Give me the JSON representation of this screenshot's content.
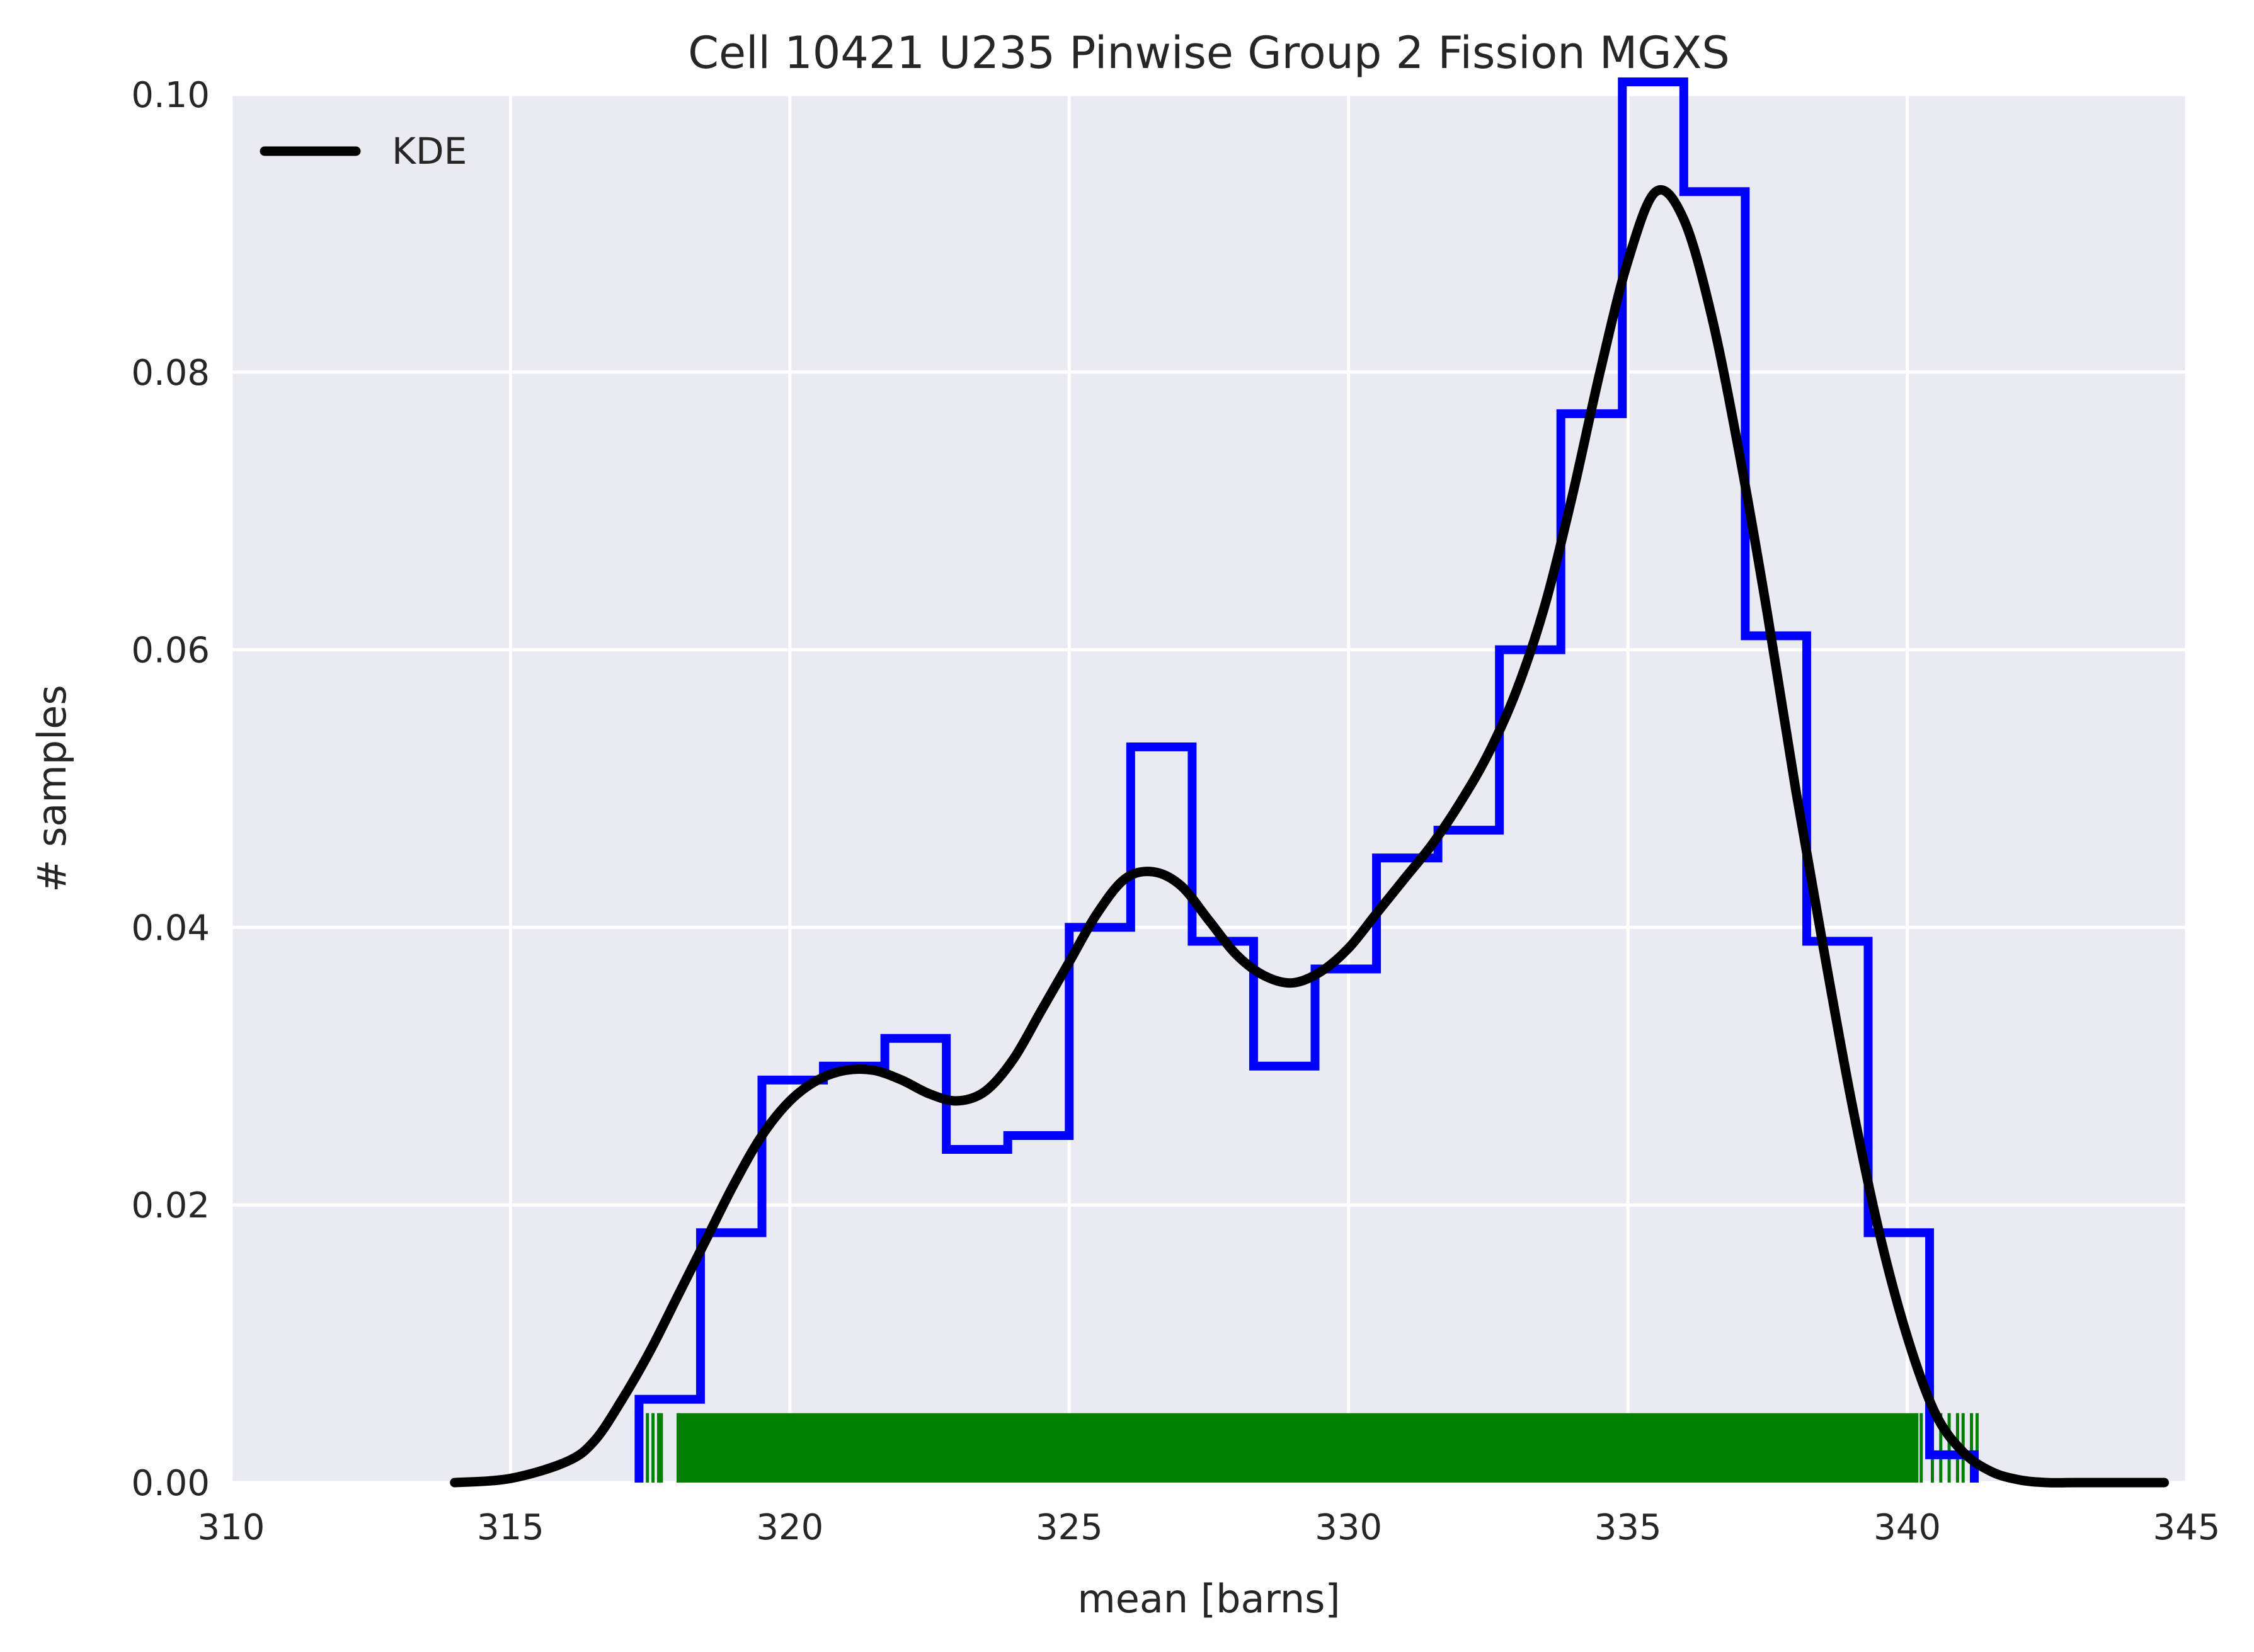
{
  "chart_data": {
    "type": "histogram",
    "title": "Cell 10421 U235 Pinwise Group 2 Fission MGXS",
    "xlabel": "mean [barns]",
    "ylabel": "# samples",
    "xlim": [
      310,
      345
    ],
    "ylim": [
      0,
      0.1
    ],
    "xticks": [
      "310",
      "315",
      "320",
      "325",
      "330",
      "335",
      "340",
      "345"
    ],
    "yticks": [
      "0.00",
      "0.02",
      "0.04",
      "0.06",
      "0.08",
      "0.10"
    ],
    "grid": true,
    "legend": {
      "position": "top-left",
      "entries": [
        "KDE"
      ]
    },
    "colors": {
      "background": "#eaeaf2",
      "grid": "#ffffff",
      "histogram": "#0000ff",
      "kde": "#000000",
      "rug": "#008000"
    },
    "histogram": {
      "bin_edges": [
        317.3,
        318.4,
        319.5,
        320.6,
        321.7,
        322.8,
        323.9,
        325.0,
        326.1,
        327.2,
        328.3,
        329.4,
        330.5,
        331.6,
        332.7,
        333.8,
        334.9,
        336.0,
        337.1,
        338.2,
        339.3,
        340.4,
        341.2
      ],
      "values": [
        0.006,
        0.018,
        0.029,
        0.03,
        0.032,
        0.024,
        0.025,
        0.04,
        0.053,
        0.039,
        0.03,
        0.037,
        0.045,
        0.047,
        0.06,
        0.077,
        0.104,
        0.093,
        0.061,
        0.039,
        0.018,
        0.002
      ]
    },
    "kde": {
      "x": [
        314.0,
        315.0,
        316.0,
        316.5,
        317.0,
        317.5,
        318.0,
        318.5,
        319.0,
        319.5,
        320.0,
        320.5,
        321.0,
        321.5,
        322.0,
        322.5,
        323.0,
        323.5,
        324.0,
        324.5,
        325.0,
        325.5,
        326.0,
        326.5,
        327.0,
        327.5,
        328.0,
        328.5,
        329.0,
        329.5,
        330.0,
        330.5,
        331.0,
        331.5,
        332.0,
        332.5,
        333.0,
        333.5,
        334.0,
        334.5,
        335.0,
        335.5,
        336.0,
        336.5,
        337.0,
        337.5,
        338.0,
        338.5,
        339.0,
        339.5,
        340.0,
        340.5,
        341.0,
        341.5,
        342.0,
        342.5,
        343.0,
        344.0,
        344.6
      ],
      "y": [
        0.0,
        0.0003,
        0.0015,
        0.003,
        0.006,
        0.0095,
        0.0135,
        0.0175,
        0.0215,
        0.025,
        0.0275,
        0.029,
        0.0297,
        0.0297,
        0.029,
        0.028,
        0.0275,
        0.0282,
        0.0305,
        0.034,
        0.0375,
        0.041,
        0.0435,
        0.044,
        0.043,
        0.0405,
        0.038,
        0.0365,
        0.036,
        0.0368,
        0.0385,
        0.041,
        0.0435,
        0.046,
        0.049,
        0.0525,
        0.057,
        0.063,
        0.071,
        0.08,
        0.088,
        0.093,
        0.091,
        0.084,
        0.074,
        0.0625,
        0.05,
        0.0385,
        0.0275,
        0.018,
        0.0105,
        0.005,
        0.0022,
        0.0008,
        0.0002,
        0.0,
        0.0,
        0.0,
        0.0
      ]
    },
    "rug": {
      "dense_range": [
        318.0,
        340.2
      ],
      "sparse_points": [
        317.25,
        317.45,
        317.55,
        317.65,
        317.7,
        318.0,
        340.25,
        340.45,
        340.6,
        340.75,
        340.9,
        341.0,
        341.15,
        341.25
      ]
    }
  }
}
